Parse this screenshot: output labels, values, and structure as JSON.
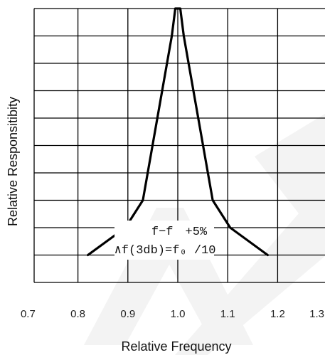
{
  "chart_data": {
    "type": "line",
    "xlabel": "Relative Frequency",
    "ylabel": "Relative Responsitibity",
    "xlim": [
      0.7,
      1.3
    ],
    "x_ticks": [
      "0.7",
      "0.8",
      "0.9",
      "1.0",
      "1.1",
      "1.2",
      "1.3"
    ],
    "y_gridlines": 10,
    "grid": true,
    "series": [
      {
        "x": [
          0.82,
          0.895,
          0.93,
          0.988,
          0.995,
          1.005,
          1.012,
          1.07,
          1.105,
          1.18
        ],
        "y": [
          0.1,
          0.2,
          0.3,
          0.9,
          1.0,
          1.0,
          0.9,
          0.3,
          0.2,
          0.1
        ]
      }
    ],
    "annotations": [
      "f−f　+5%",
      "∧f(3db)=f₀ /10"
    ],
    "colors": {
      "line": "#000000",
      "grid": "#000000",
      "background": "#ffffff"
    }
  },
  "watermark": {
    "color": "#f2f2f2"
  }
}
